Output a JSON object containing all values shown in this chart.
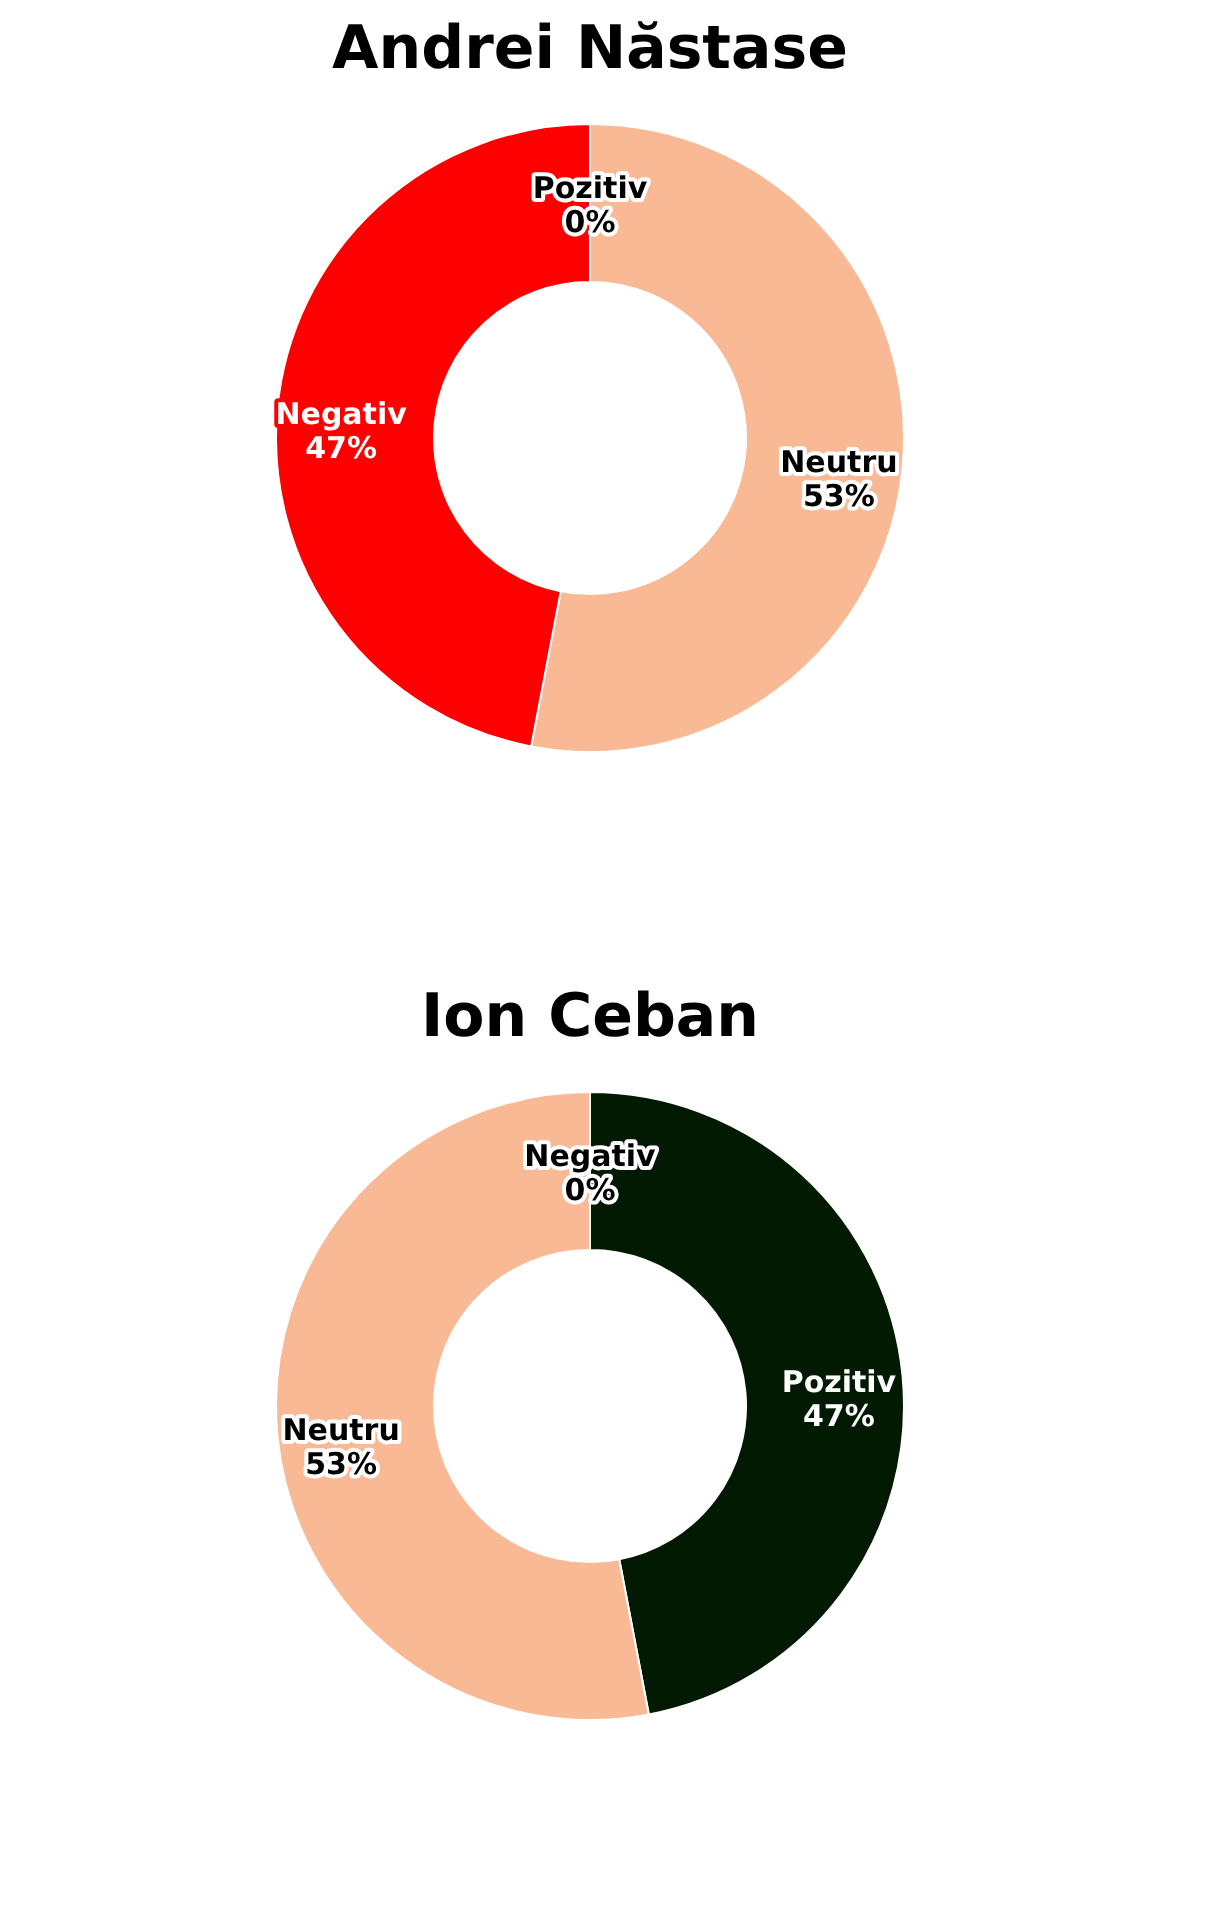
{
  "chart_data": [
    {
      "type": "donut",
      "title": "Andrei Năstase",
      "categories": [
        "Pozitiv",
        "Neutru",
        "Negativ"
      ],
      "values": [
        0,
        53,
        47
      ],
      "value_labels": [
        "0%",
        "53%",
        "47%"
      ],
      "colors": [
        "#021a02",
        "#f8b994",
        "#ff0000"
      ],
      "legend": false
    },
    {
      "type": "donut",
      "title": "Ion Ceban",
      "categories": [
        "Negativ",
        "Pozitiv",
        "Neutru"
      ],
      "values": [
        0,
        47,
        53
      ],
      "value_labels": [
        "0%",
        "47%",
        "53%"
      ],
      "colors": [
        "#ff0000",
        "#021a02",
        "#f8b994"
      ],
      "legend": false
    }
  ]
}
